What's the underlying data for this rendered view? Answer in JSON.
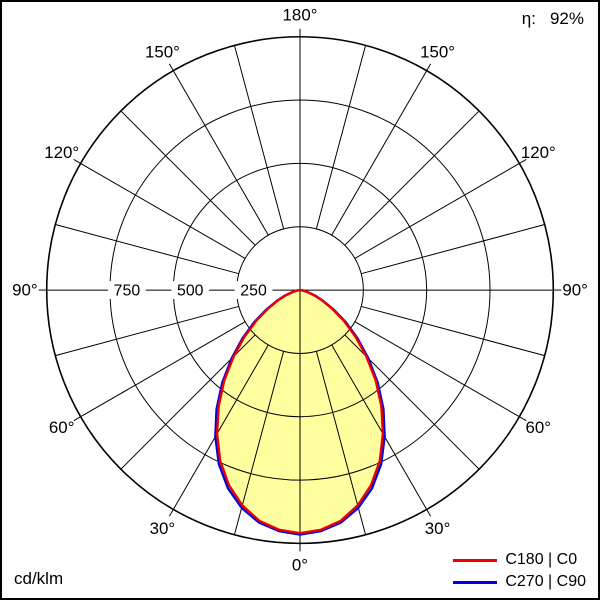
{
  "meta": {
    "efficiency_label": "η:",
    "efficiency_value": "92%",
    "unit_label": "cd/klm"
  },
  "legend": [
    {
      "label": "C180 | C0",
      "color": "#ee0000"
    },
    {
      "label": "C270 | C90",
      "color": "#0000e0"
    }
  ],
  "chart_data": {
    "type": "polar-intensity",
    "unit": "cd/klm",
    "fill_color": "#ffffa0",
    "angle_step_deg": 15,
    "radial_axis": {
      "max": 1000,
      "rings": [
        250,
        500,
        750,
        1000
      ],
      "ring_labels": [
        "250",
        "500",
        "750"
      ]
    },
    "angle_labels": [
      {
        "angle": 0,
        "label": "0°"
      },
      {
        "angle": 30,
        "label": "30°"
      },
      {
        "angle": 60,
        "label": "60°"
      },
      {
        "angle": 90,
        "label": "90°"
      },
      {
        "angle": 120,
        "label": "120°"
      },
      {
        "angle": 150,
        "label": "150°"
      },
      {
        "angle": 180,
        "label": "180°"
      }
    ],
    "series": [
      {
        "name": "C180 | C0",
        "color": "#ee0000",
        "angles": [
          0,
          5,
          10,
          15,
          20,
          25,
          30,
          35,
          40,
          45,
          50,
          55,
          60,
          65,
          70,
          75,
          80,
          85,
          90
        ],
        "values": [
          960,
          950,
          925,
          880,
          820,
          745,
          655,
          560,
          465,
          370,
          285,
          210,
          145,
          95,
          58,
          30,
          12,
          4,
          0
        ]
      },
      {
        "name": "C270 | C90",
        "color": "#0000e0",
        "angles": [
          0,
          5,
          10,
          15,
          20,
          25,
          30,
          35,
          40,
          45,
          50,
          55,
          60,
          65,
          70,
          75,
          80,
          85,
          90
        ],
        "values": [
          965,
          955,
          932,
          890,
          832,
          758,
          668,
          574,
          478,
          382,
          296,
          220,
          152,
          100,
          62,
          33,
          14,
          5,
          0
        ]
      }
    ]
  }
}
